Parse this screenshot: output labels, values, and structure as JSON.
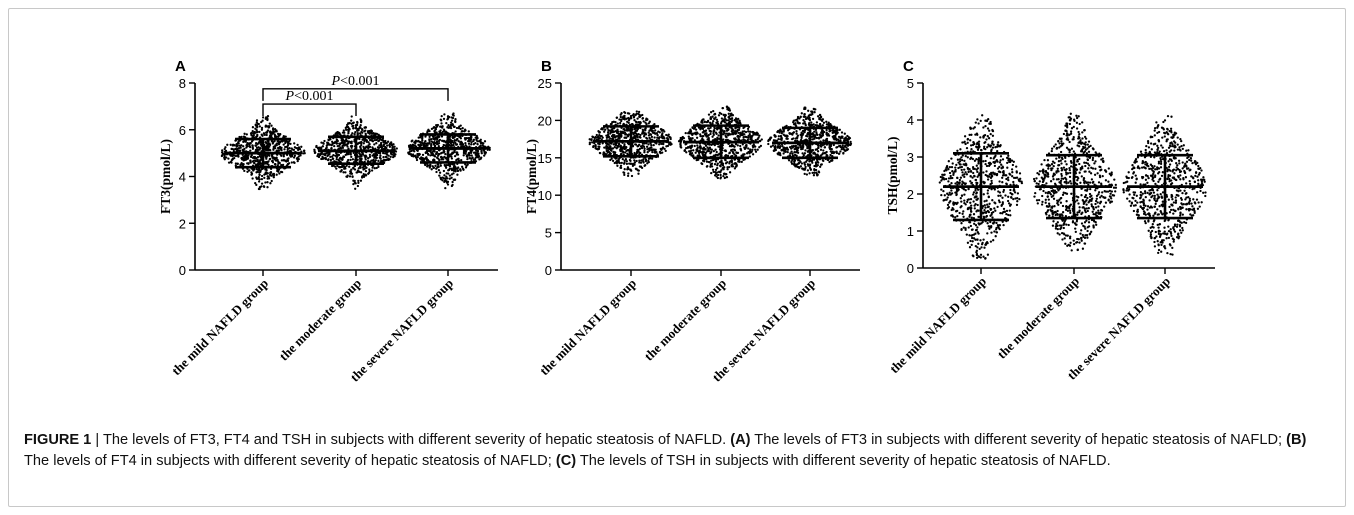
{
  "caption": {
    "figure_label": "FIGURE 1",
    "separator": " | ",
    "text_1": "The levels of FT3, FT4 and TSH in subjects with different severity of hepatic steatosis of NAFLD. ",
    "tag_a": "(A)",
    "text_a": " The levels of FT3 in subjects with different severity of hepatic steatosis of NAFLD; ",
    "tag_b": "(B)",
    "text_b": " The levels of FT4 in subjects with different severity of hepatic steatosis of NAFLD; ",
    "tag_c": "(C)",
    "text_c": " The levels of TSH in subjects with different severity of hepatic steatosis of NAFLD."
  },
  "chart_data": [
    {
      "panel": "A",
      "type": "scatter",
      "ylabel": "FT3(pmol/L)",
      "ylim": [
        0,
        8
      ],
      "yticks": [
        0,
        2,
        4,
        6,
        8
      ],
      "categories": [
        "the mild NAFLD group",
        "the moderate group",
        "the severe NAFLD group"
      ],
      "summary": [
        {
          "mean": 5.0,
          "sd_low": 4.4,
          "sd_high": 5.6,
          "min": 3.3,
          "max": 6.6
        },
        {
          "mean": 5.1,
          "sd_low": 4.55,
          "sd_high": 5.7,
          "min": 3.4,
          "max": 6.6
        },
        {
          "mean": 5.2,
          "sd_low": 4.6,
          "sd_high": 5.8,
          "min": 3.4,
          "max": 6.7
        }
      ],
      "annotations": [
        {
          "from": 0,
          "to": 1,
          "text": "P<0.001",
          "y": 7.1
        },
        {
          "from": 0,
          "to": 2,
          "text": "P<0.001",
          "y": 7.75
        }
      ]
    },
    {
      "panel": "B",
      "type": "scatter",
      "ylabel": "FT4(pmol/L)",
      "ylim": [
        0,
        25
      ],
      "yticks": [
        0,
        5,
        10,
        15,
        20,
        25
      ],
      "categories": [
        "the mild NAFLD group",
        "the moderate group",
        "the severe NAFLD group"
      ],
      "summary": [
        {
          "mean": 17.2,
          "sd_low": 15.2,
          "sd_high": 19.2,
          "min": 12.5,
          "max": 21.2
        },
        {
          "mean": 17.1,
          "sd_low": 15.0,
          "sd_high": 19.3,
          "min": 12.2,
          "max": 22.0
        },
        {
          "mean": 17.0,
          "sd_low": 15.0,
          "sd_high": 19.0,
          "min": 12.6,
          "max": 21.8
        }
      ],
      "annotations": []
    },
    {
      "panel": "C",
      "type": "scatter",
      "ylabel": "TSH(pmol/L)",
      "ylim": [
        0,
        5
      ],
      "yticks": [
        0,
        1,
        2,
        3,
        4,
        5
      ],
      "categories": [
        "the mild NAFLD group",
        "the moderate group",
        "the severe NAFLD group"
      ],
      "summary": [
        {
          "mean": 2.2,
          "sd_low": 1.3,
          "sd_high": 3.1,
          "min": 0.25,
          "max": 4.15
        },
        {
          "mean": 2.2,
          "sd_low": 1.35,
          "sd_high": 3.05,
          "min": 0.45,
          "max": 4.2
        },
        {
          "mean": 2.2,
          "sd_low": 1.35,
          "sd_high": 3.05,
          "min": 0.35,
          "max": 4.15
        }
      ],
      "annotations": []
    }
  ]
}
